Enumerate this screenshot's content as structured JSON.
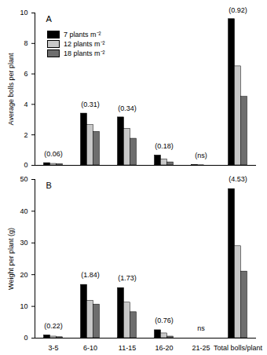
{
  "chart_data": [
    {
      "type": "bar",
      "title": "A",
      "ylabel": "Average bolls per plant",
      "categories": [
        "3-5",
        "6-10",
        "11-15",
        "16-20",
        "21-25",
        "Total bolls/plant"
      ],
      "series": [
        {
          "name": "7 plants m⁻²",
          "color": "#000000",
          "values": [
            0.15,
            3.4,
            3.15,
            0.65,
            0.02,
            9.6
          ]
        },
        {
          "name": "12 plants m⁻²",
          "color": "#c8c8c8",
          "values": [
            0.1,
            2.65,
            2.4,
            0.4,
            0.01,
            6.5
          ]
        },
        {
          "name": "18 plants m⁻²",
          "color": "#6e6e6e",
          "values": [
            0.08,
            2.2,
            1.75,
            0.2,
            0,
            4.5
          ]
        }
      ],
      "annotations": [
        "(0.06)",
        "(0.31)",
        "(0.34)",
        "(0.18)",
        "(ns)",
        "(0.92)"
      ],
      "ylim": [
        0,
        10
      ],
      "yticks": [
        0,
        2,
        4,
        6,
        8,
        10
      ],
      "legend": "upper left",
      "tick_labels": "y"
    },
    {
      "type": "bar",
      "title": "B",
      "ylabel": "Weight per plant (g)",
      "categories": [
        "3-5",
        "6-10",
        "11-15",
        "16-20",
        "21-25",
        "Total bolls/plant"
      ],
      "series": [
        {
          "name": "7 plants m⁻²",
          "color": "#000000",
          "values": [
            0.9,
            16.8,
            15.8,
            2.5,
            0,
            47
          ]
        },
        {
          "name": "12 plants m⁻²",
          "color": "#c8c8c8",
          "values": [
            0.5,
            11.8,
            11.2,
            1.5,
            0,
            29
          ]
        },
        {
          "name": "18 plants m⁻²",
          "color": "#6e6e6e",
          "values": [
            0.3,
            10.6,
            8.2,
            0.5,
            0,
            21
          ]
        }
      ],
      "annotations": [
        "(0.22)",
        "(1.84)",
        "(1.73)",
        "(0.76)",
        "ns",
        "(4.53)"
      ],
      "ylim": [
        0,
        50
      ],
      "yticks": [
        0,
        10,
        20,
        30,
        40,
        50
      ],
      "legend": false
    }
  ]
}
